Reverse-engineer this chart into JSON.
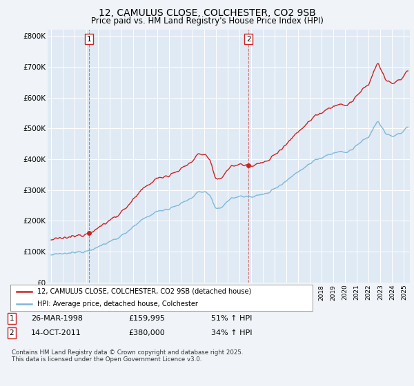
{
  "title": "12, CAMULUS CLOSE, COLCHESTER, CO2 9SB",
  "subtitle": "Price paid vs. HM Land Registry's House Price Index (HPI)",
  "ylabel_ticks": [
    "£0",
    "£100K",
    "£200K",
    "£300K",
    "£400K",
    "£500K",
    "£600K",
    "£700K",
    "£800K"
  ],
  "ytick_values": [
    0,
    100000,
    200000,
    300000,
    400000,
    500000,
    600000,
    700000,
    800000
  ],
  "ylim": [
    0,
    820000
  ],
  "xlim_start": 1994.7,
  "xlim_end": 2025.5,
  "hpi_color": "#7db8d8",
  "price_color": "#cc2222",
  "sale1_date": 1998.23,
  "sale1_price": 159995,
  "sale2_date": 2011.79,
  "sale2_price": 380000,
  "legend_line1": "12, CAMULUS CLOSE, COLCHESTER, CO2 9SB (detached house)",
  "legend_line2": "HPI: Average price, detached house, Colchester",
  "footnote": "Contains HM Land Registry data © Crown copyright and database right 2025.\nThis data is licensed under the Open Government Licence v3.0.",
  "background_color": "#f0f4f8",
  "plot_bg_color": "#e0eaf4"
}
